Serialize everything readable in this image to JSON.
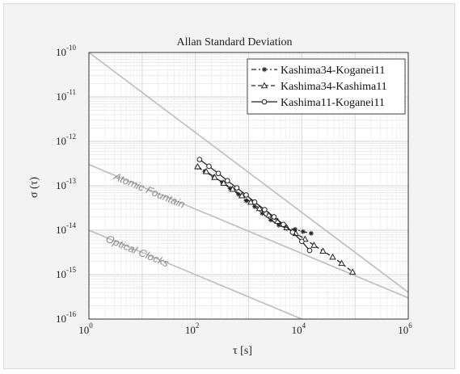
{
  "chart_data": {
    "type": "line",
    "title": "Allan Standard Deviation",
    "xlabel": "τ [s]",
    "ylabel": "σ (τ)",
    "xscale": "log",
    "yscale": "log",
    "xlim": [
      1,
      1000000
    ],
    "ylim": [
      1e-16,
      1e-10
    ],
    "grid": true,
    "legend_position": "top-right",
    "x_ticks": [
      {
        "base": "10",
        "exp": "0",
        "value": 1
      },
      {
        "base": "10",
        "exp": "2",
        "value": 100
      },
      {
        "base": "10",
        "exp": "4",
        "value": 10000
      },
      {
        "base": "10",
        "exp": "6",
        "value": 1000000
      }
    ],
    "y_ticks": [
      {
        "base": "10",
        "exp": "-10",
        "value": 1e-10
      },
      {
        "base": "10",
        "exp": "-11",
        "value": 1e-11
      },
      {
        "base": "10",
        "exp": "-12",
        "value": 1e-12
      },
      {
        "base": "10",
        "exp": "-13",
        "value": 1e-13
      },
      {
        "base": "10",
        "exp": "-14",
        "value": 1e-14
      },
      {
        "base": "10",
        "exp": "-15",
        "value": 1e-15
      },
      {
        "base": "10",
        "exp": "-16",
        "value": 1e-16
      }
    ],
    "reference_lines": [
      {
        "label": "",
        "points": [
          [
            1,
            1e-10
          ],
          [
            1000000,
            4e-16
          ]
        ]
      },
      {
        "label": "Atomic Fountain",
        "points": [
          [
            1,
            3e-13
          ],
          [
            1000000,
            3e-16
          ]
        ]
      },
      {
        "label": "Optical Clocks",
        "points": [
          [
            1,
            1e-14
          ],
          [
            1000000,
            1e-17
          ]
        ]
      }
    ],
    "series": [
      {
        "name": "Kashima34-Koganei11",
        "marker": "star",
        "dash": "6,3,2,3",
        "x": [
          110,
          150,
          220,
          320,
          450,
          650,
          900,
          1300,
          1800,
          2600,
          3700,
          5200,
          7500,
          10500,
          15000
        ],
        "y": [
          2.6e-13,
          2.1e-13,
          1.6e-13,
          1.2e-13,
          8.7e-14,
          6.4e-14,
          4.6e-14,
          3.4e-14,
          2.4e-14,
          1.7e-14,
          1.3e-14,
          1.1e-14,
          1.05e-14,
          9.3e-15,
          8.5e-15
        ]
      },
      {
        "name": "Kashima34-Kashima11",
        "marker": "triangle",
        "dash": "5,3",
        "x": [
          110,
          160,
          230,
          340,
          500,
          750,
          1100,
          1600,
          2400,
          3500,
          5200,
          7700,
          11500,
          17000,
          25000,
          38000,
          56000,
          90000
        ],
        "y": [
          2.7e-13,
          2.1e-13,
          1.55e-13,
          1.15e-13,
          8.4e-14,
          6e-14,
          4.3e-14,
          3.1e-14,
          2.2e-14,
          1.6e-14,
          1.15e-14,
          8.5e-15,
          6.3e-15,
          4.6e-15,
          3.4e-15,
          2.5e-15,
          1.8e-15,
          1.15e-15
        ]
      },
      {
        "name": "Kashima11-Koganei11",
        "marker": "circle",
        "dash": "",
        "x": [
          120,
          180,
          270,
          400,
          600,
          900,
          1300,
          2000,
          3000,
          4500,
          6700,
          10000,
          14000
        ],
        "y": [
          3.9e-13,
          2.75e-13,
          1.9e-13,
          1.3e-13,
          9e-14,
          6.2e-14,
          4.3e-14,
          2.9e-14,
          2e-14,
          1.35e-14,
          9e-15,
          5.6e-15,
          3.5e-15
        ]
      }
    ]
  }
}
